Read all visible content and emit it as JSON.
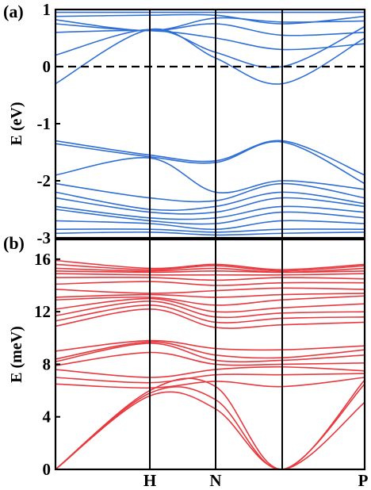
{
  "chart_data": [
    {
      "panel_label": "(a)",
      "type": "line",
      "description": "electronic band structure",
      "ylabel": "E (eV)",
      "ylim": [
        -3,
        1
      ],
      "yticks": [
        -3,
        -2,
        -1,
        0,
        1
      ],
      "fermi_level": 0,
      "x_kpoints": [
        "",
        "H",
        "N",
        "",
        "P"
      ],
      "colors": {
        "bands": "#2f6fd6"
      },
      "series": [
        {
          "values": [
            0.95,
            0.95,
            0.95,
            0.95,
            0.95
          ]
        },
        {
          "values": [
            0.88,
            0.9,
            0.9,
            0.75,
            0.88
          ]
        },
        {
          "values": [
            0.82,
            0.63,
            0.85,
            0.78,
            0.8
          ]
        },
        {
          "values": [
            0.75,
            0.63,
            0.75,
            0.55,
            0.6
          ]
        },
        {
          "values": [
            0.6,
            0.63,
            0.5,
            0.3,
            0.4
          ]
        },
        {
          "values": [
            0.2,
            0.65,
            0.25,
            0.0,
            0.7
          ]
        },
        {
          "values": [
            -0.3,
            0.65,
            0.15,
            -0.3,
            0.5
          ]
        },
        {
          "values": [
            -1.3,
            -1.55,
            -1.65,
            -1.3,
            -1.9
          ]
        },
        {
          "values": [
            -1.35,
            -1.58,
            -1.68,
            -1.32,
            -2.05
          ]
        },
        {
          "values": [
            -1.9,
            -1.6,
            -2.2,
            -2.0,
            -2.15
          ]
        },
        {
          "values": [
            -2.05,
            -2.3,
            -2.35,
            -2.05,
            -2.3
          ]
        },
        {
          "values": [
            -2.2,
            -2.5,
            -2.45,
            -2.2,
            -2.4
          ]
        },
        {
          "values": [
            -2.3,
            -2.55,
            -2.55,
            -2.3,
            -2.45
          ]
        },
        {
          "values": [
            -2.45,
            -2.65,
            -2.65,
            -2.45,
            -2.55
          ]
        },
        {
          "values": [
            -2.5,
            -2.7,
            -2.75,
            -2.55,
            -2.65
          ]
        },
        {
          "values": [
            -2.7,
            -2.75,
            -2.85,
            -2.7,
            -2.75
          ]
        },
        {
          "values": [
            -2.85,
            -2.85,
            -2.9,
            -2.85,
            -2.85
          ]
        },
        {
          "values": [
            -2.92,
            -2.9,
            -2.95,
            -2.92,
            -2.9
          ]
        }
      ]
    },
    {
      "panel_label": "(b)",
      "type": "line",
      "description": "phonon dispersion",
      "ylabel": "E (meV)",
      "ylim": [
        0,
        17.5
      ],
      "yticks": [
        0,
        4,
        8,
        12,
        16
      ],
      "x_kpoints": [
        "",
        "H",
        "N",
        "",
        "P"
      ],
      "colors": {
        "bands": "#e8393f"
      },
      "series": [
        {
          "values": [
            0,
            5.6,
            4.6,
            0,
            5.1
          ]
        },
        {
          "values": [
            0,
            5.8,
            5.3,
            0,
            6.5
          ]
        },
        {
          "values": [
            0,
            6.0,
            6.3,
            0,
            6.8
          ]
        },
        {
          "values": [
            6.5,
            6.2,
            6.7,
            6.3,
            7.0
          ]
        },
        {
          "values": [
            7.0,
            6.6,
            7.2,
            7.2,
            7.3
          ]
        },
        {
          "values": [
            7.6,
            7.0,
            7.6,
            7.8,
            7.5
          ]
        },
        {
          "values": [
            7.9,
            8.9,
            8.0,
            8.0,
            8.1
          ]
        },
        {
          "values": [
            8.2,
            9.6,
            8.3,
            8.3,
            8.7
          ]
        },
        {
          "values": [
            8.4,
            9.7,
            8.7,
            8.5,
            9.1
          ]
        },
        {
          "values": [
            9.0,
            9.8,
            9.2,
            9.1,
            9.4
          ]
        },
        {
          "values": [
            10.9,
            12.2,
            10.8,
            11.0,
            11.2
          ]
        },
        {
          "values": [
            11.3,
            12.5,
            11.2,
            11.5,
            11.6
          ]
        },
        {
          "values": [
            11.7,
            12.8,
            11.6,
            11.9,
            12.0
          ]
        },
        {
          "values": [
            12.2,
            13.0,
            12.0,
            12.3,
            12.6
          ]
        },
        {
          "values": [
            12.9,
            13.1,
            12.5,
            12.9,
            13.2
          ]
        },
        {
          "values": [
            13.1,
            13.3,
            13.1,
            13.3,
            13.4
          ]
        },
        {
          "values": [
            13.7,
            13.4,
            13.6,
            13.8,
            13.7
          ]
        },
        {
          "values": [
            14.1,
            14.3,
            14.0,
            14.2,
            14.2
          ]
        },
        {
          "values": [
            14.6,
            14.6,
            14.4,
            14.6,
            14.5
          ]
        },
        {
          "values": [
            14.9,
            14.8,
            14.8,
            14.8,
            14.9
          ]
        },
        {
          "values": [
            15.1,
            15.0,
            15.1,
            15.0,
            15.1
          ]
        },
        {
          "values": [
            15.3,
            15.1,
            15.3,
            15.0,
            15.3
          ]
        },
        {
          "values": [
            15.6,
            15.2,
            15.5,
            15.1,
            15.5
          ]
        },
        {
          "values": [
            15.9,
            15.3,
            15.6,
            15.2,
            15.6
          ]
        }
      ]
    }
  ]
}
